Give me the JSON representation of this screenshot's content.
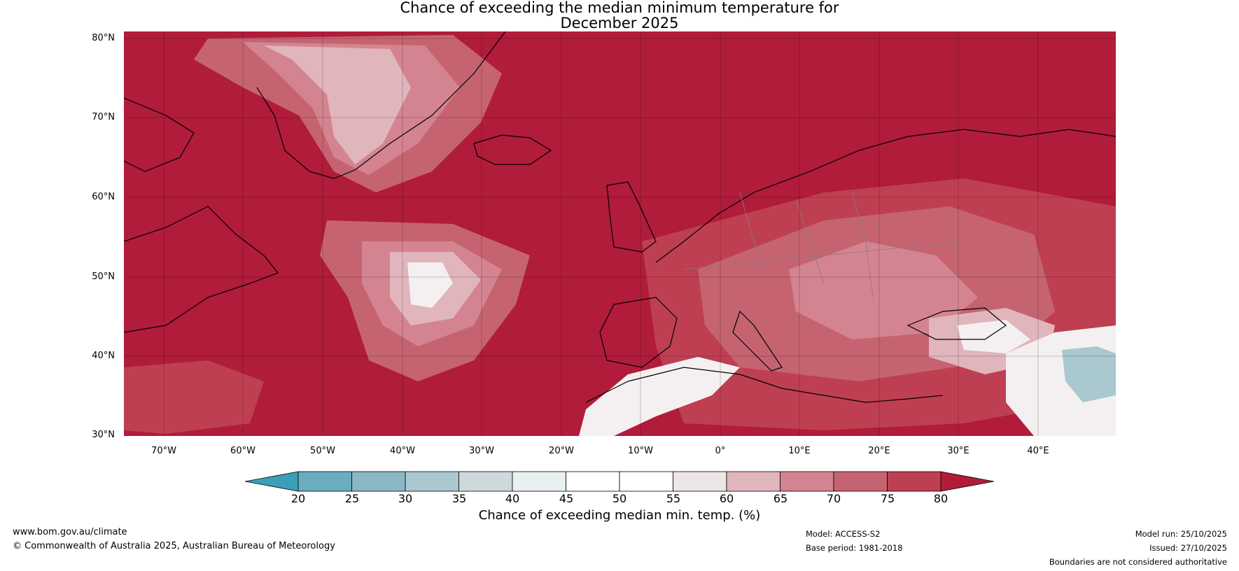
{
  "title_line1": "Chance of exceeding the median minimum temperature for",
  "title_line2": "December 2025",
  "lat_labels": [
    "80°N",
    "70°N",
    "60°N",
    "50°N",
    "40°N",
    "30°N"
  ],
  "lon_labels": [
    "70°W",
    "60°W",
    "50°W",
    "40°W",
    "30°W",
    "20°W",
    "10°W",
    "0°",
    "10°E",
    "20°E",
    "30°E",
    "40°E"
  ],
  "colorbar": {
    "label": "Chance of exceeding median min. temp. (%)",
    "ticks": [
      "20",
      "25",
      "30",
      "35",
      "40",
      "45",
      "50",
      "55",
      "60",
      "65",
      "70",
      "75",
      "80"
    ],
    "colors": {
      "below20": "#3b9fb5",
      "bins": [
        "#6aadbf",
        "#8ab7c5",
        "#a9c8cf",
        "#cfd9dc",
        "#e9f0f1",
        "#ffffff",
        "#ffffff",
        "#ece6e7",
        "#e1b5bc",
        "#d48490",
        "#c56470",
        "#bf3f52"
      ],
      "above80": "#b01c3a"
    }
  },
  "colors": {
    "ocean_high": "#b01c3a",
    "band_75": "#bf3f52",
    "band_70": "#c56470",
    "band_65": "#d48490",
    "band_60": "#e1b5bc",
    "near_50": "#f4f0f1",
    "below_40": "#a9c8cf",
    "coast": "#000000",
    "border": "#808080"
  },
  "footer": {
    "website": "www.bom.gov.au/climate",
    "copyright": "© Commonwealth of Australia 2025, Australian Bureau of Meteorology",
    "model": "Model: ACCESS-S2",
    "base_period": "Base period: 1981-2018",
    "model_run": "Model run: 25/10/2025",
    "issued": "Issued: 27/10/2025",
    "disclaimer": "Boundaries are not considered authoritative"
  }
}
